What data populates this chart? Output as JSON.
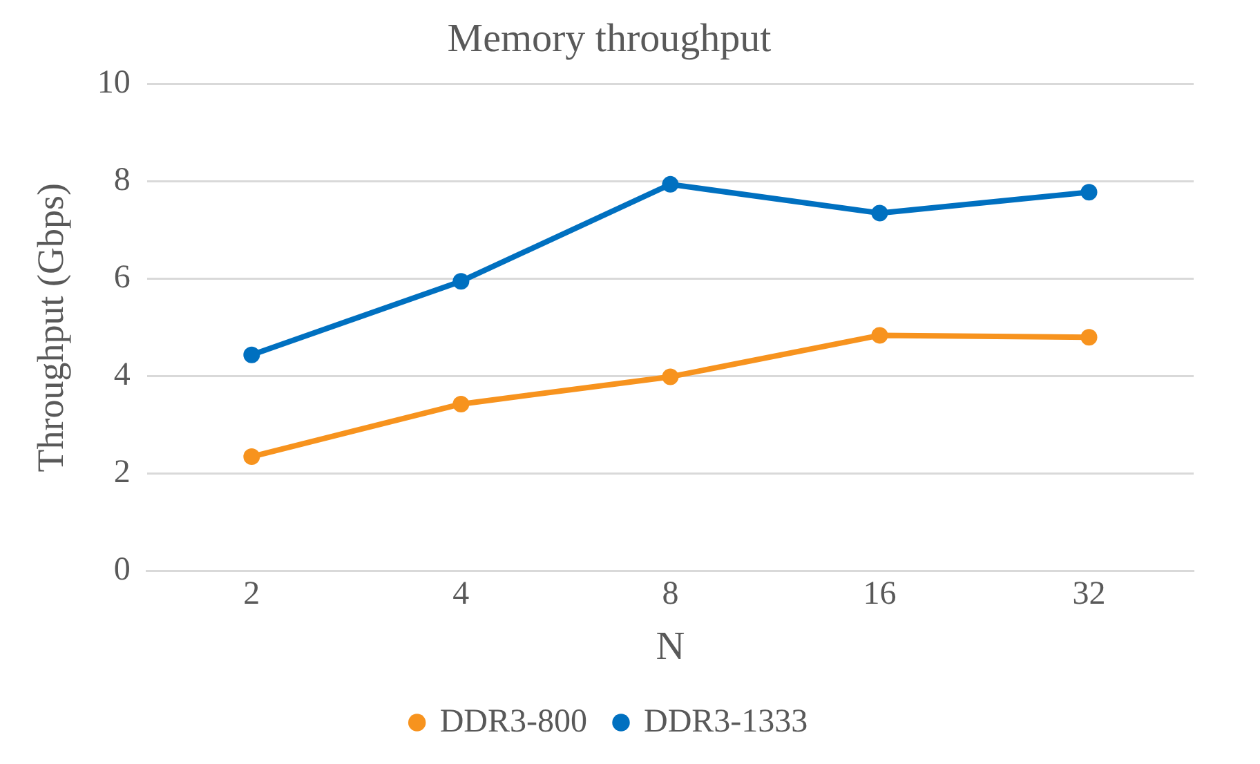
{
  "chart_data": {
    "type": "line",
    "title": "Memory throughput",
    "xlabel": "N",
    "ylabel": "Throughput (Gbps)",
    "categories": [
      "2",
      "4",
      "8",
      "16",
      "32"
    ],
    "series": [
      {
        "name": "DDR3-800",
        "color": "#f7931e",
        "values": [
          2.35,
          3.43,
          3.99,
          4.84,
          4.8
        ]
      },
      {
        "name": "DDR3-1333",
        "color": "#0070c0",
        "values": [
          4.44,
          5.95,
          7.94,
          7.35,
          7.78
        ]
      }
    ],
    "ylim": [
      0,
      10
    ],
    "yticks": [
      0,
      2,
      4,
      6,
      8,
      10
    ],
    "grid": "y",
    "legend": "bottom",
    "marker": "circle",
    "line_style": "solid"
  }
}
